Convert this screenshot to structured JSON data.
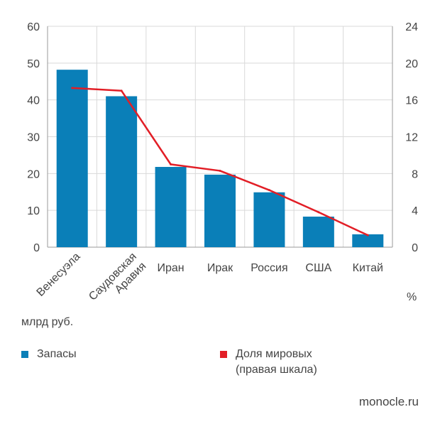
{
  "chart_data": {
    "type": "bar",
    "categories": [
      "Венесуэла",
      "Саудовская Аравия",
      "Иран",
      "Ирак",
      "Россия",
      "США",
      "Китай"
    ],
    "category_lines": [
      [
        "Венесуэла"
      ],
      [
        "Саудовская",
        "Аравия"
      ],
      [
        "Иран"
      ],
      [
        "Ирак"
      ],
      [
        "Россия"
      ],
      [
        "США"
      ],
      [
        "Китай"
      ]
    ],
    "series": [
      {
        "name": "Запасы",
        "type": "bar",
        "axis": "left",
        "values": [
          48.2,
          41.0,
          21.8,
          19.7,
          14.9,
          8.3,
          3.5
        ]
      },
      {
        "name": "Доля мировых (правая шкала)",
        "type": "line",
        "axis": "right",
        "values": [
          17.3,
          17.0,
          9.0,
          8.3,
          6.2,
          3.8,
          1.3
        ]
      }
    ],
    "y_left": {
      "ylim": [
        0,
        60
      ],
      "ticks": [
        0,
        10,
        20,
        30,
        40,
        50,
        60
      ],
      "unit": "млрд руб."
    },
    "y_right": {
      "ylim": [
        0,
        24
      ],
      "ticks": [
        0,
        4,
        8,
        12,
        16,
        20,
        24
      ],
      "unit": "%"
    },
    "grid": true,
    "colors": {
      "bars": "#0a7fb8",
      "line": "#e21e26",
      "grid": "#d9d9d9"
    },
    "legend": [
      {
        "label_lines": [
          "Запасы"
        ],
        "color": "#0a7fb8"
      },
      {
        "label_lines": [
          "Доля мировых",
          "(правая шкала)"
        ],
        "color": "#e21e26"
      }
    ]
  },
  "source": "monocle.ru"
}
